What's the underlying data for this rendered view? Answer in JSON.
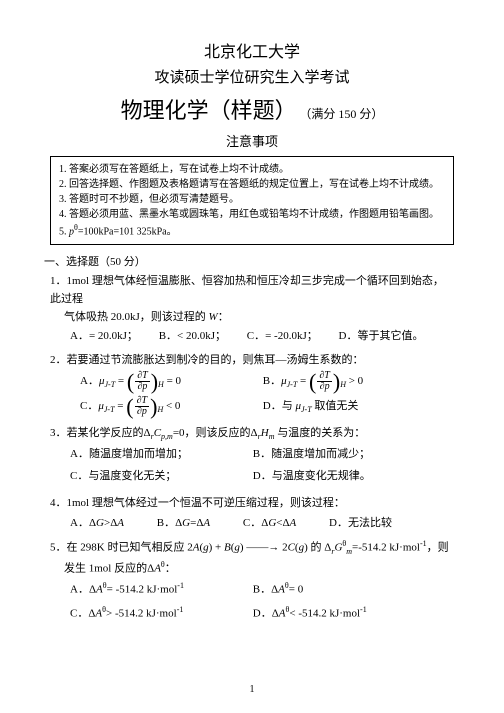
{
  "header": {
    "university": "北京化工大学",
    "examline": "攻读硕士学位研究生入学考试",
    "subject": "物理化学（样题）",
    "fullmark": "（满分 150 分）",
    "noticetitle": "注意事项"
  },
  "notices": [
    "1. 答案必须写在答题纸上，写在试卷上均不计成绩。",
    "2. 回答选择题、作图题及表格题请写在答题纸的规定位置上，写在试卷上均不计成绩。",
    "3. 答题时可不抄题，但必须写清楚题号。",
    "4. 答题必须用蓝、黑墨水笔或圆珠笔，用红色或铅笔均不计成绩，作图题用铅笔画图。",
    "5. pθ=100kPa=101 325kPa。"
  ],
  "section1": "一、选择题（50 分）",
  "q1": {
    "text_a": "1．1mol 理想气体经恒温膨胀、恒容加热和恒压冷却三步完成一个循环回到始态，此过程",
    "text_b": "气体吸热 20.0kJ，则该过程的 W：",
    "A": "A．= 20.0kJ；",
    "B": "B．< 20.0kJ；",
    "C": "C．= -20.0kJ；",
    "D": "D．等于其它值。"
  },
  "q2": {
    "text": "2．若要通过节流膨胀达到制冷的目的，则焦耳—汤姆生系数的：",
    "A_pre": "A．",
    "A_post": "= 0",
    "B_pre": "B．",
    "B_post": "> 0",
    "C_pre": "C．",
    "C_post": "< 0",
    "D": "D．与 μJ-T 取值无关"
  },
  "q3": {
    "text": "3．若某化学反应的ΔrCp,m=0，则该反应的ΔrHm 与温度的关系为：",
    "A": "A．随温度增加而增加；",
    "B": "B．随温度增加而减少；",
    "C": "C．与温度变化无关；",
    "D": "D．与温度变化无规律。"
  },
  "q4": {
    "text": "4．1mol 理想气体经过一个恒温不可逆压缩过程，则该过程：",
    "A": "A．ΔG>ΔA",
    "B": "B．ΔG=ΔA",
    "C": "C．ΔG<ΔA",
    "D": "D．无法比较"
  },
  "q5": {
    "text_a": "5．在 298K 时已知气相反应 2A(g) + B(g) ——→ 2C(g) 的 ΔrGmθ=-514.2 kJ·mol⁻¹，则",
    "text_b": "发生 1mol 反应的ΔAθ：",
    "A": "A．ΔAθ= -514.2 kJ·mol⁻¹",
    "B": "B．ΔAθ= 0",
    "C": "C．ΔAθ> -514.2 kJ·mol⁻¹",
    "D": "D．ΔAθ< -514.2 kJ·mol⁻¹"
  },
  "pagenum": "1"
}
